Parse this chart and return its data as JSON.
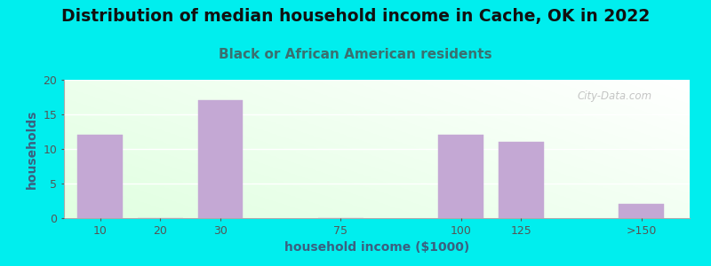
{
  "title": "Distribution of median household income in Cache, OK in 2022",
  "subtitle": "Black or African American residents",
  "xlabel": "household income ($1000)",
  "ylabel": "households",
  "categories": [
    "10",
    "20",
    "30",
    "75",
    "100",
    "125",
    ">150"
  ],
  "values": [
    12,
    0,
    17,
    0,
    12,
    11,
    2
  ],
  "bar_color": "#C4A8D4",
  "background_color": "#00EEEE",
  "title_color": "#111111",
  "subtitle_color": "#3A7070",
  "axis_label_color": "#3A6080",
  "tick_color": "#555555",
  "ylim": [
    0,
    20
  ],
  "yticks": [
    0,
    5,
    10,
    15,
    20
  ],
  "watermark": "City-Data.com",
  "title_fontsize": 13.5,
  "subtitle_fontsize": 11,
  "axis_label_fontsize": 10,
  "tick_fontsize": 9,
  "grad_green": [
    0.88,
    1.0,
    0.88
  ],
  "grad_white": [
    1.0,
    1.0,
    1.0
  ]
}
